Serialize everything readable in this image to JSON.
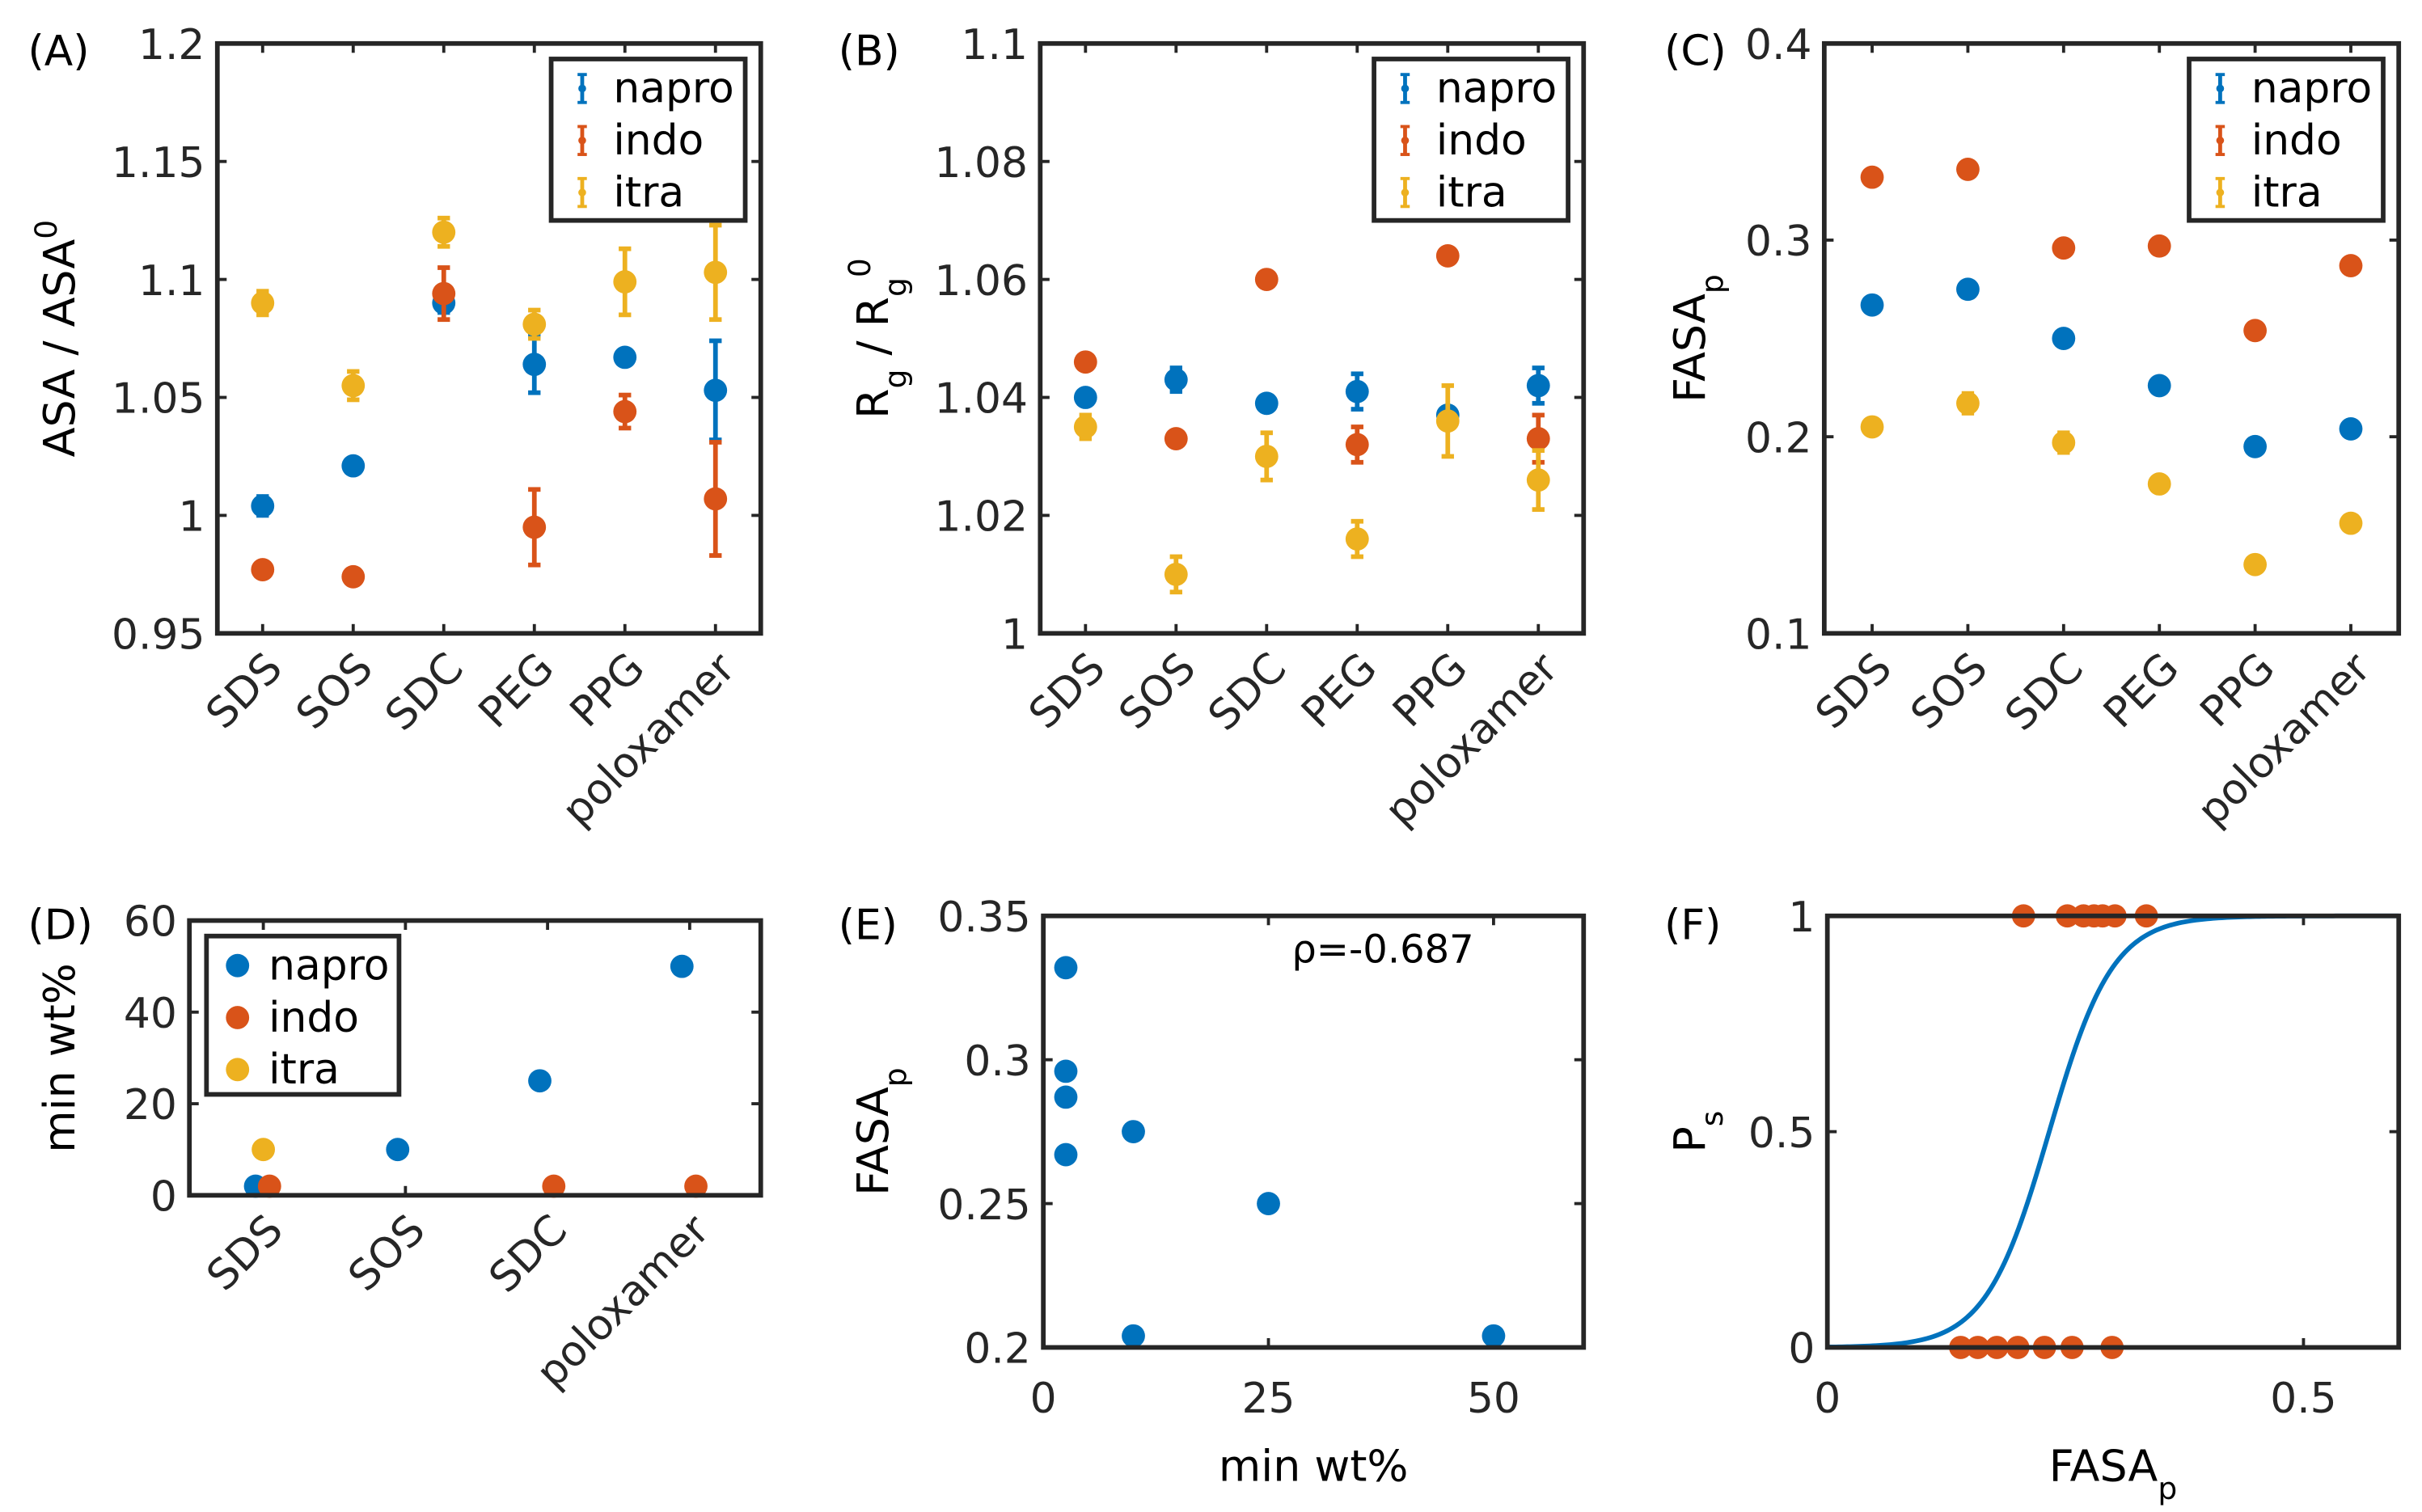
{
  "colors": {
    "napro": "#0072BD",
    "indo": "#D95319",
    "itra": "#EDB120",
    "axis": "#262626"
  },
  "chart_data": [
    {
      "panel": "(A)",
      "type": "scatter",
      "errorbars": true,
      "categories": [
        "SDS",
        "SOS",
        "SDC",
        "PEG",
        "PPG",
        "poloxamer"
      ],
      "ylabel": [
        {
          "t": "ASA / ASA"
        },
        {
          "t": "0",
          "sup": true
        }
      ],
      "ylim": [
        0.95,
        1.2
      ],
      "yticks": [
        "0.95",
        "1",
        "1.05",
        "1.1",
        "1.15",
        "1.2"
      ],
      "legend": {
        "entries": [
          "napro",
          "indo",
          "itra"
        ],
        "placement": "top-right",
        "style": "errorbar"
      },
      "series": [
        {
          "name": "napro",
          "values": [
            1.004,
            1.021,
            1.09,
            1.064,
            1.067,
            1.053
          ],
          "errors": [
            0.004,
            0.002,
            0.004,
            0.012,
            0.002,
            0.021
          ]
        },
        {
          "name": "indo",
          "values": [
            0.977,
            0.974,
            1.094,
            0.995,
            1.044,
            1.007
          ],
          "errors": [
            0.002,
            0.003,
            0.011,
            0.016,
            0.007,
            0.024
          ]
        },
        {
          "name": "itra",
          "values": [
            1.09,
            1.055,
            1.12,
            1.081,
            1.099,
            1.103
          ],
          "errors": [
            0.005,
            0.006,
            0.006,
            0.006,
            0.014,
            0.02
          ]
        }
      ]
    },
    {
      "panel": "(B)",
      "type": "scatter",
      "errorbars": true,
      "categories": [
        "SDS",
        "SOS",
        "SDC",
        "PEG",
        "PPG",
        "poloxamer"
      ],
      "ylabel": [
        {
          "t": "R"
        },
        {
          "t": "g",
          "sub": true
        },
        {
          "t": " / R"
        },
        {
          "t": "g",
          "sub": true
        },
        {
          "t": "0",
          "sup": true
        }
      ],
      "ylim": [
        1.0,
        1.1
      ],
      "yticks": [
        "1",
        "1.02",
        "1.04",
        "1.06",
        "1.08",
        "1.1"
      ],
      "legend": {
        "entries": [
          "napro",
          "indo",
          "itra"
        ],
        "placement": "top-right",
        "style": "errorbar"
      },
      "series": [
        {
          "name": "napro",
          "values": [
            1.04,
            1.043,
            1.039,
            1.041,
            1.037,
            1.042
          ],
          "errors": [
            0.001,
            0.002,
            0.001,
            0.003,
            0.001,
            0.003
          ]
        },
        {
          "name": "indo",
          "values": [
            1.046,
            1.033,
            1.06,
            1.032,
            1.064,
            1.033
          ],
          "errors": [
            0.001,
            0.001,
            0.001,
            0.003,
            0.001,
            0.004
          ]
        },
        {
          "name": "itra",
          "values": [
            1.035,
            1.01,
            1.03,
            1.016,
            1.036,
            1.026
          ],
          "errors": [
            0.002,
            0.003,
            0.004,
            0.003,
            0.006,
            0.005
          ]
        }
      ]
    },
    {
      "panel": "(C)",
      "type": "scatter",
      "errorbars": true,
      "categories": [
        "SDS",
        "SOS",
        "SDC",
        "PEG",
        "PPG",
        "poloxamer"
      ],
      "ylabel": [
        {
          "t": "FASA"
        },
        {
          "t": "p",
          "sub": true
        }
      ],
      "ylim": [
        0.1,
        0.4
      ],
      "yticks": [
        "0.1",
        "0.2",
        "0.3",
        "0.4"
      ],
      "legend": {
        "entries": [
          "napro",
          "indo",
          "itra"
        ],
        "placement": "top-right",
        "style": "errorbar"
      },
      "series": [
        {
          "name": "napro",
          "values": [
            0.267,
            0.275,
            0.25,
            0.226,
            0.195,
            0.204
          ],
          "errors": [
            0.002,
            0.002,
            0.002,
            0.002,
            0.002,
            0.002
          ]
        },
        {
          "name": "indo",
          "values": [
            0.332,
            0.336,
            0.296,
            0.297,
            0.254,
            0.287
          ],
          "errors": [
            0.002,
            0.002,
            0.002,
            0.002,
            0.002,
            0.002
          ]
        },
        {
          "name": "itra",
          "values": [
            0.205,
            0.217,
            0.197,
            0.176,
            0.135,
            0.156
          ],
          "errors": [
            0.002,
            0.005,
            0.005,
            0.002,
            0.002,
            0.002
          ]
        }
      ]
    },
    {
      "panel": "(D)",
      "type": "scatter",
      "errorbars": false,
      "categories": [
        "SDS",
        "SOS",
        "SDC",
        "poloxamer"
      ],
      "ylabel": [
        {
          "t": "min wt%"
        }
      ],
      "ylim": [
        0,
        60
      ],
      "yticks": [
        "0",
        "20",
        "40",
        "60"
      ],
      "legend": {
        "entries": [
          "napro",
          "indo",
          "itra"
        ],
        "placement": "top-left",
        "style": "marker"
      },
      "series": [
        {
          "name": "napro",
          "values": [
            2,
            10,
            25,
            50
          ]
        },
        {
          "name": "indo",
          "values": [
            2,
            null,
            2,
            2
          ]
        },
        {
          "name": "itra",
          "values": [
            10,
            null,
            null,
            null
          ]
        }
      ]
    },
    {
      "panel": "(E)",
      "type": "scatter",
      "errorbars": false,
      "xlabel": [
        {
          "t": "min wt%"
        }
      ],
      "ylabel": [
        {
          "t": "FASA"
        },
        {
          "t": "p",
          "sub": true
        }
      ],
      "xlim": [
        0,
        60
      ],
      "ylim": [
        0.2,
        0.35
      ],
      "xticks": [
        "0",
        "25",
        "50"
      ],
      "yticks": [
        "0.2",
        "0.25",
        "0.3",
        "0.35"
      ],
      "annotation": "ρ=-0.687",
      "series": [
        {
          "name": "napro",
          "x": [
            2.5,
            2.5,
            2.5,
            2.5,
            10,
            25,
            10,
            50
          ],
          "y": [
            0.332,
            0.296,
            0.287,
            0.267,
            0.275,
            0.25,
            0.204,
            0.204
          ]
        }
      ]
    },
    {
      "panel": "(F)",
      "type": "scatter",
      "errorbars": false,
      "xlabel": [
        {
          "t": "FASA"
        },
        {
          "t": "p",
          "sub": true
        }
      ],
      "ylabel": [
        {
          "t": "P"
        },
        {
          "t": "s",
          "sub": true
        }
      ],
      "xlim": [
        0,
        0.6
      ],
      "ylim": [
        0,
        1
      ],
      "xticks": [
        "0",
        "0.5"
      ],
      "yticks": [
        "0",
        "0.5",
        "1"
      ],
      "series": [
        {
          "name": "indo",
          "x": [
            0.206,
            0.252,
            0.269,
            0.28,
            0.289,
            0.302,
            0.335
          ],
          "y": [
            1,
            1,
            1,
            1,
            1,
            1,
            1
          ]
        },
        {
          "name": "indo",
          "x": [
            0.14,
            0.158,
            0.178,
            0.2,
            0.228,
            0.257,
            0.299
          ],
          "y": [
            0,
            0,
            0,
            0,
            0,
            0,
            0
          ]
        }
      ],
      "fit": {
        "type": "logistic",
        "name": "napro",
        "midpoint": 0.233,
        "slope": 30
      }
    }
  ]
}
